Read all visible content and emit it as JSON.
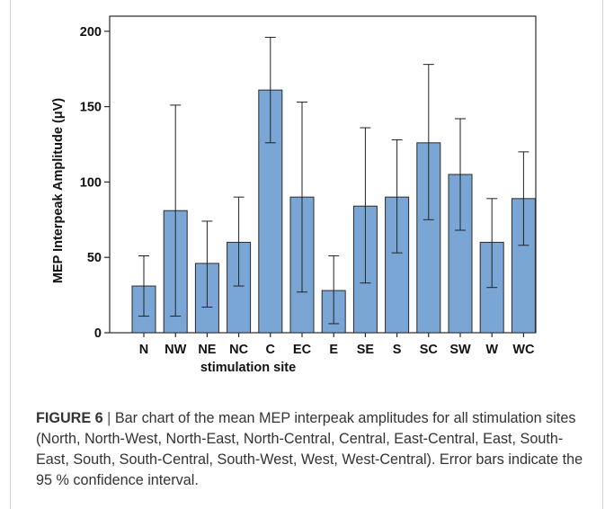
{
  "chart_data": {
    "type": "bar",
    "categories": [
      "N",
      "NW",
      "NE",
      "NC",
      "C",
      "EC",
      "E",
      "SE",
      "S",
      "SC",
      "SW",
      "W",
      "WC"
    ],
    "values": [
      31,
      81,
      46,
      60,
      161,
      90,
      28,
      84,
      90,
      126,
      105,
      60,
      89
    ],
    "error_low": [
      11,
      11,
      17,
      31,
      126,
      27,
      6,
      33,
      53,
      75,
      68,
      30,
      58
    ],
    "error_high": [
      51,
      151,
      74,
      90,
      196,
      153,
      51,
      136,
      128,
      178,
      142,
      89,
      120
    ],
    "error_bars": "95 % confidence interval",
    "ylabel": "MEP Interpeak Amplitude (μV)",
    "xlabel": "stimulation site",
    "ylim": [
      0,
      210
    ],
    "yticks": [
      0,
      50,
      100,
      150,
      200
    ],
    "grid": false,
    "bar_color": "#7aa6d6",
    "bar_edge_color": "#2a2a2a"
  },
  "caption": {
    "label": "FIGURE 6",
    "separator": "|",
    "text": "Bar chart of the mean MEP interpeak amplitudes for all stimulation sites (North, North-West, North-East, North-Central, Central, East-Central, East, South-East, South, South-Central, South-West, West, West-Central). Error bars indicate the 95 % confidence interval."
  }
}
